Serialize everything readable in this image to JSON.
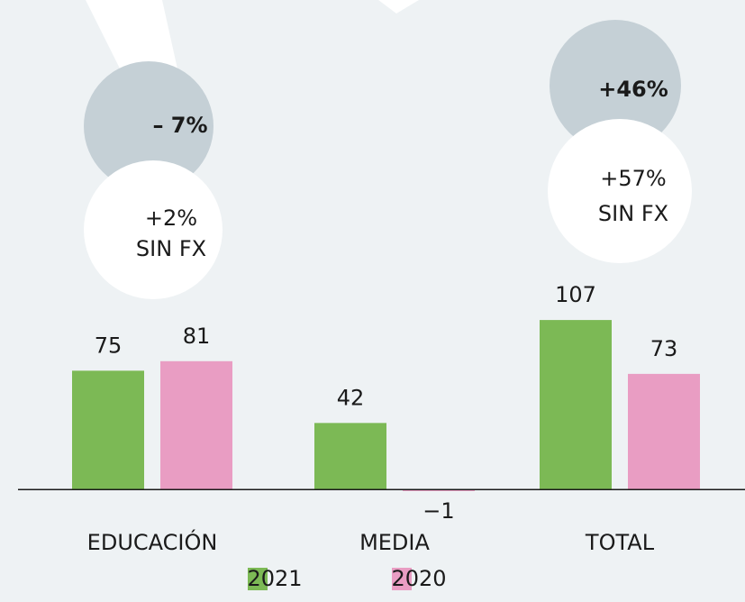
{
  "chart_data": {
    "type": "bar",
    "categories": [
      "EDUCACIÓN",
      "MEDIA",
      "TOTAL"
    ],
    "series": [
      {
        "name": "2021",
        "color": "#7cb955",
        "values": [
          75,
          42,
          107
        ]
      },
      {
        "name": "2020",
        "color": "#e99dc3",
        "values": [
          81,
          -1,
          73
        ]
      }
    ],
    "value_labels": [
      [
        "75",
        "42",
        "107"
      ],
      [
        "81",
        "−1",
        "73"
      ]
    ],
    "ylim": [
      -71,
      309
    ],
    "annotations": [
      {
        "change": "– 7%",
        "fx_change": "+2%",
        "fx_note": "SIN FX"
      },
      {
        "change": "+46%",
        "fx_change": "+57%",
        "fx_note": "SIN FX"
      }
    ]
  }
}
